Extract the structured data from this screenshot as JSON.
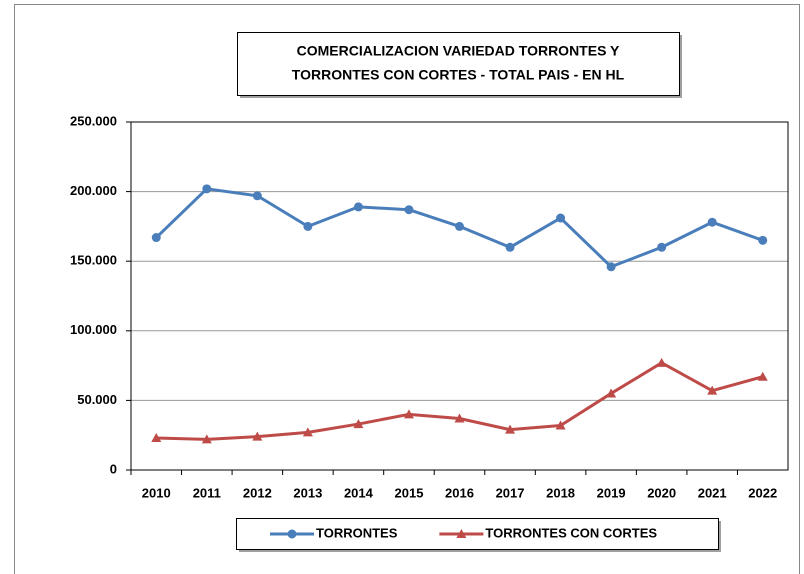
{
  "chart_data": {
    "type": "line",
    "title": [
      "COMERCIALIZACION VARIEDAD TORRONTES  Y",
      "TORRONTES CON CORTES - TOTAL PAIS - EN HL"
    ],
    "categories": [
      "2010",
      "2011",
      "2012",
      "2013",
      "2014",
      "2015",
      "2016",
      "2017",
      "2018",
      "2019",
      "2020",
      "2021",
      "2022"
    ],
    "series": [
      {
        "name": "TORRONTES",
        "color": "#4a7ebb",
        "marker": "circle",
        "values": [
          167000,
          202000,
          197000,
          175000,
          189000,
          187000,
          175000,
          160000,
          181000,
          146000,
          160000,
          178000,
          165000
        ]
      },
      {
        "name": "TORRONTES CON CORTES",
        "color": "#be4b48",
        "marker": "triangle",
        "values": [
          23000,
          22000,
          24000,
          27000,
          33000,
          40000,
          37000,
          29000,
          32000,
          55000,
          77000,
          57000,
          67000
        ]
      }
    ],
    "ylim": [
      0,
      250000
    ],
    "yticks": [
      0,
      {
        "value": 50000,
        "label": "50.000"
      },
      {
        "value": 100000,
        "label": "100.000"
      },
      {
        "value": 150000,
        "label": "150.000"
      },
      {
        "value": 200000,
        "label": "200.000"
      },
      {
        "value": 250000,
        "label": "250.000"
      }
    ],
    "grid": true,
    "legend": "bottom"
  }
}
